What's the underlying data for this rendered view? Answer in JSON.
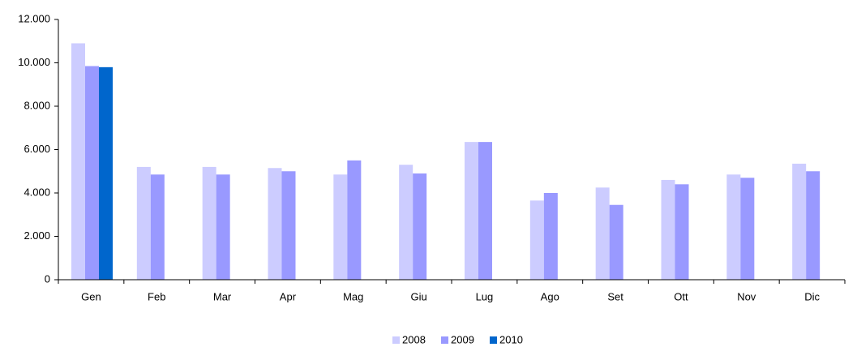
{
  "chart_data": {
    "type": "bar",
    "categories": [
      "Gen",
      "Feb",
      "Mar",
      "Apr",
      "Mag",
      "Giu",
      "Lug",
      "Ago",
      "Set",
      "Ott",
      "Nov",
      "Dic"
    ],
    "series": [
      {
        "name": "2008",
        "color": "#ccccff",
        "values": [
          10900,
          5200,
          5200,
          5150,
          4850,
          5300,
          6350,
          3650,
          4250,
          4600,
          4850,
          5350
        ]
      },
      {
        "name": "2009",
        "color": "#9999ff",
        "values": [
          9850,
          4850,
          4850,
          5000,
          5500,
          4900,
          6350,
          4000,
          3450,
          4400,
          4700,
          5000
        ]
      },
      {
        "name": "2010",
        "color": "#0066cc",
        "values": [
          9800,
          null,
          null,
          null,
          null,
          null,
          null,
          null,
          null,
          null,
          null,
          null
        ]
      }
    ],
    "ylim": [
      0,
      12000
    ],
    "yticks": [
      0,
      {
        "value": 2000,
        "label": "2.000"
      },
      {
        "value": 4000,
        "label": "4.000"
      },
      {
        "value": 6000,
        "label": "6.000"
      },
      {
        "value": 8000,
        "label": "8.000"
      },
      {
        "value": 10000,
        "label": "10.000"
      },
      {
        "value": 12000,
        "label": "12.000"
      }
    ],
    "grid": false,
    "legend": "bottom"
  }
}
